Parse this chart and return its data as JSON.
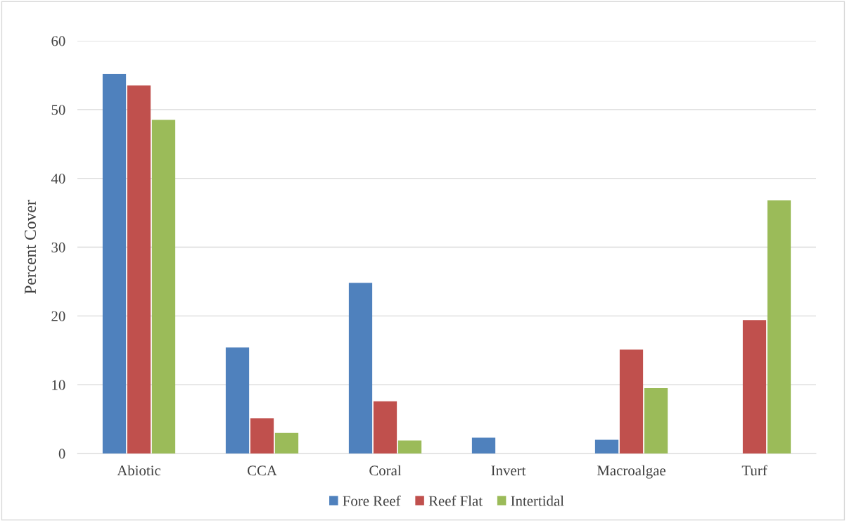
{
  "chart_data": {
    "type": "bar",
    "ylabel": "Percent Cover",
    "categories": [
      "Abiotic",
      "CCA",
      "Coral",
      "Invert",
      "Macroalgae",
      "Turf"
    ],
    "series": [
      {
        "name": "Fore Reef",
        "color": "#4f81bd",
        "values": [
          55.2,
          15.4,
          24.8,
          2.3,
          2.0,
          0
        ]
      },
      {
        "name": "Reef Flat",
        "color": "#c0504d",
        "values": [
          53.5,
          5.1,
          7.6,
          0,
          15.1,
          19.4
        ]
      },
      {
        "name": "Intertidal",
        "color": "#9bbb59",
        "values": [
          48.5,
          3.0,
          1.9,
          0,
          9.5,
          36.8
        ]
      }
    ],
    "ylim": [
      0,
      60
    ],
    "yticks": [
      0,
      10,
      20,
      30,
      40,
      50,
      60
    ],
    "grid": "y",
    "legend": "bottom"
  }
}
